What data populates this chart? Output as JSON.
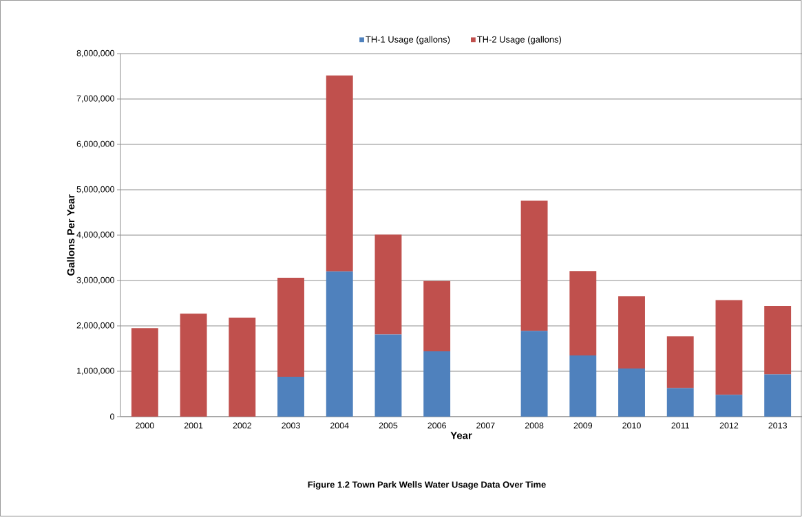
{
  "chart_data": {
    "type": "bar",
    "title": "Figure 1.2  Town Park Wells Water Usage Data Over Time",
    "xlabel": "Year",
    "ylabel": "Gallons Per Year",
    "categories": [
      "2000",
      "2001",
      "2002",
      "2003",
      "2004",
      "2005",
      "2006",
      "2007",
      "2008",
      "2009",
      "2010",
      "2011",
      "2012",
      "2013"
    ],
    "stacked": true,
    "series": [
      {
        "name": "TH-1 Usage (gallons)",
        "color": "#4f81bd",
        "values": [
          0,
          0,
          0,
          880000,
          3200000,
          1810000,
          1440000,
          0,
          1890000,
          1350000,
          1060000,
          630000,
          480000,
          930000
        ]
      },
      {
        "name": "TH-2 Usage (gallons)",
        "color": "#c0504d",
        "values": [
          1950000,
          2270000,
          2180000,
          2180000,
          4320000,
          2200000,
          1550000,
          0,
          2870000,
          1860000,
          1590000,
          1140000,
          2090000,
          1510000
        ]
      }
    ],
    "ylim": [
      0,
      8000000
    ],
    "yticks": [
      0,
      {
        "value": 1000000,
        "label": "1,000,000"
      },
      {
        "value": 2000000,
        "label": "2,000,000"
      },
      {
        "value": 3000000,
        "label": "3,000,000"
      },
      {
        "value": 4000000,
        "label": "4,000,000"
      },
      {
        "value": 5000000,
        "label": "5,000,000"
      },
      {
        "value": 6000000,
        "label": "6,000,000"
      },
      {
        "value": 7000000,
        "label": "7,000,000"
      },
      {
        "value": 8000000,
        "label": "8,000,000"
      }
    ],
    "grid": "y",
    "legend": "top"
  }
}
